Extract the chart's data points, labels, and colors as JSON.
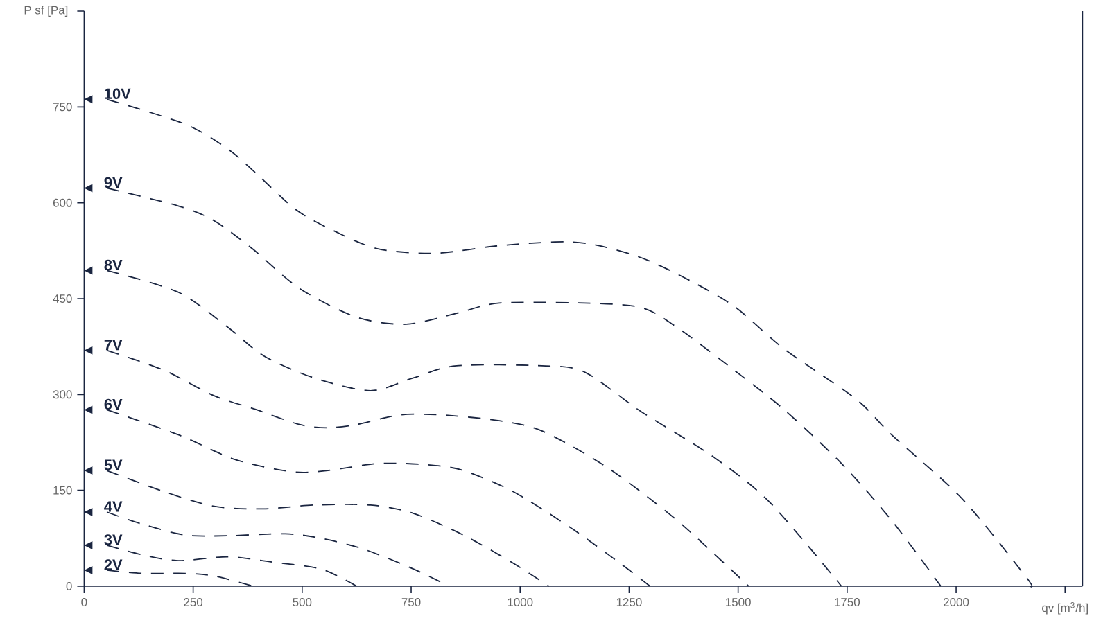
{
  "chart_data": {
    "type": "line",
    "xlabel": "qv [m$^{3}$/h]",
    "ylabel": "P sf [Pa]",
    "xlim": [
      0,
      2290
    ],
    "ylim": [
      0,
      900
    ],
    "xticks": [
      0,
      250,
      500,
      750,
      1000,
      1250,
      1500,
      1750,
      2000,
      {
        "value": 2250,
        "label": null
      }
    ],
    "yticks": [
      0,
      150,
      300,
      450,
      600,
      750,
      {
        "value": 900,
        "label": null
      }
    ],
    "line_style": "dashed",
    "marker": "none",
    "legend": "left",
    "grid": false,
    "series": [
      {
        "name": "10V",
        "color": "#1a2540",
        "x": [
          52,
          232,
          330,
          396,
          486,
          576,
          674,
          804,
          952,
          1099,
          1180,
          1278,
          1376,
          1491,
          1606,
          1770,
          1852,
          2015,
          2162,
          2170
        ],
        "values": [
          762,
          723,
          684,
          645,
          589,
          555,
          528,
          521,
          533,
          539,
          533,
          514,
          483,
          438,
          371,
          293,
          237,
          136,
          13,
          0
        ]
      },
      {
        "name": "9V",
        "color": "#1a2540",
        "x": [
          52,
          216,
          298,
          386,
          494,
          625,
          739,
          854,
          952,
          1148,
          1278,
          1360,
          1491,
          1606,
          1737,
          1852,
          1965
        ],
        "values": [
          623,
          595,
          572,
          528,
          466,
          421,
          410,
          427,
          443,
          443,
          436,
          405,
          338,
          276,
          192,
          103,
          0
        ]
      },
      {
        "name": "8V",
        "color": "#1a2540",
        "x": [
          52,
          216,
          330,
          413,
          527,
          657,
          755,
          854,
          1050,
          1148,
          1278,
          1442,
          1573,
          1737
        ],
        "values": [
          494,
          460,
          405,
          360,
          326,
          306,
          326,
          345,
          345,
          335,
          273,
          203,
          131,
          0
        ]
      },
      {
        "name": "7V",
        "color": "#1a2540",
        "x": [
          52,
          183,
          298,
          396,
          494,
          559,
          625,
          723,
          821,
          952,
          1050,
          1197,
          1360,
          1524
        ],
        "values": [
          369,
          338,
          298,
          276,
          253,
          248,
          253,
          268,
          268,
          259,
          243,
          187,
          103,
          0
        ]
      },
      {
        "name": "6V",
        "color": "#1a2540",
        "x": [
          52,
          216,
          347,
          478,
          559,
          674,
          788,
          870,
          984,
          1115,
          1229,
          1298
        ],
        "values": [
          276,
          237,
          198,
          179,
          181,
          192,
          190,
          181,
          148,
          92,
          36,
          0
        ]
      },
      {
        "name": "5V",
        "color": "#1a2540",
        "x": [
          52,
          183,
          298,
          412,
          527,
          657,
          755,
          870,
          984,
          1066
        ],
        "values": [
          181,
          148,
          125,
          121,
          127,
          127,
          114,
          80,
          36,
          0
        ]
      },
      {
        "name": "4V",
        "color": "#1a2540",
        "x": [
          52,
          134,
          232,
          330,
          461,
          543,
          641,
          755,
          837
        ],
        "values": [
          116,
          97,
          80,
          79,
          82,
          75,
          58,
          27,
          0
        ]
      },
      {
        "name": "3V",
        "color": "#1a2540",
        "x": [
          52,
          134,
          216,
          330,
          428,
          543,
          625
        ],
        "values": [
          64,
          49,
          40,
          46,
          38,
          27,
          0
        ]
      },
      {
        "name": "2V",
        "color": "#1a2540",
        "x": [
          52,
          134,
          232,
          298,
          388
        ],
        "values": [
          25,
          20,
          20,
          16,
          0
        ]
      }
    ]
  }
}
